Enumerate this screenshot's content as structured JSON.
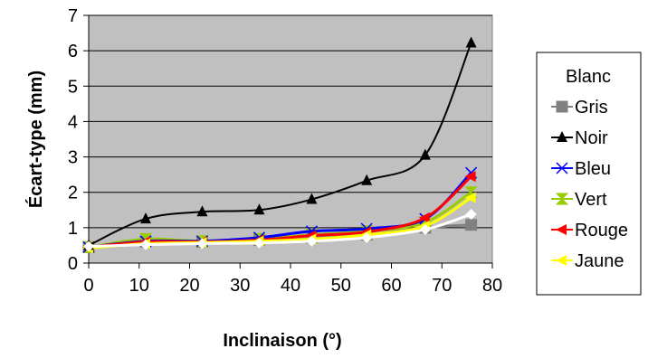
{
  "chart_data": {
    "type": "line",
    "xlabel": "Inclinaison (°)",
    "ylabel": "Écart-type (mm)",
    "xlim": [
      0,
      80
    ],
    "ylim": [
      0,
      7
    ],
    "x_ticks": [
      0,
      10,
      20,
      30,
      40,
      50,
      60,
      70,
      80
    ],
    "y_ticks": [
      0,
      1,
      2,
      3,
      4,
      5,
      6,
      7
    ],
    "grid": "horizontal",
    "plot_background": "#c0c0c0",
    "legend_position": "right",
    "series": [
      {
        "name": "Blanc",
        "color": "#ffffff",
        "marker": "diamond",
        "x": [
          0,
          11.3,
          22.5,
          33.8,
          44.2,
          55.1,
          66.7,
          75.8
        ],
        "y": [
          0.47,
          0.52,
          0.55,
          0.57,
          0.62,
          0.72,
          0.95,
          1.38
        ]
      },
      {
        "name": "Gris",
        "color": "#808080",
        "marker": "square",
        "x": [
          0,
          11.3,
          22.5,
          33.8,
          44.2,
          55.1,
          66.7,
          75.8
        ],
        "y": [
          0.45,
          0.6,
          0.6,
          0.65,
          0.72,
          0.8,
          1.0,
          1.08
        ]
      },
      {
        "name": "Noir",
        "color": "#000000",
        "marker": "triangle",
        "x": [
          0,
          11.3,
          22.5,
          33.8,
          44.2,
          55.1,
          66.7,
          75.8
        ],
        "y": [
          0.5,
          1.25,
          1.45,
          1.5,
          1.8,
          2.33,
          3.05,
          6.22
        ]
      },
      {
        "name": "Bleu",
        "color": "#0000ff",
        "marker": "bowtie",
        "x": [
          0,
          11.3,
          22.5,
          33.8,
          44.2,
          55.1,
          66.7,
          75.8
        ],
        "y": [
          0.45,
          0.62,
          0.62,
          0.72,
          0.9,
          0.97,
          1.25,
          2.55
        ]
      },
      {
        "name": "Vert",
        "color": "#99cc00",
        "marker": "hourglass",
        "x": [
          0,
          11.3,
          22.5,
          33.8,
          44.2,
          55.1,
          66.7,
          75.8
        ],
        "y": [
          0.45,
          0.68,
          0.62,
          0.68,
          0.8,
          0.9,
          1.15,
          2.0
        ]
      },
      {
        "name": "Rouge",
        "color": "#ff0000",
        "marker": "triangle-left",
        "x": [
          0,
          11.3,
          22.5,
          33.8,
          44.2,
          55.1,
          66.7,
          75.8
        ],
        "y": [
          0.45,
          0.6,
          0.6,
          0.65,
          0.78,
          0.88,
          1.28,
          2.45
        ]
      },
      {
        "name": "Jaune",
        "color": "#ffff00",
        "marker": "triangle-left",
        "x": [
          0,
          11.3,
          22.5,
          33.8,
          44.2,
          55.1,
          66.7,
          75.8
        ],
        "y": [
          0.42,
          0.55,
          0.58,
          0.62,
          0.68,
          0.8,
          1.05,
          1.85
        ]
      }
    ]
  }
}
